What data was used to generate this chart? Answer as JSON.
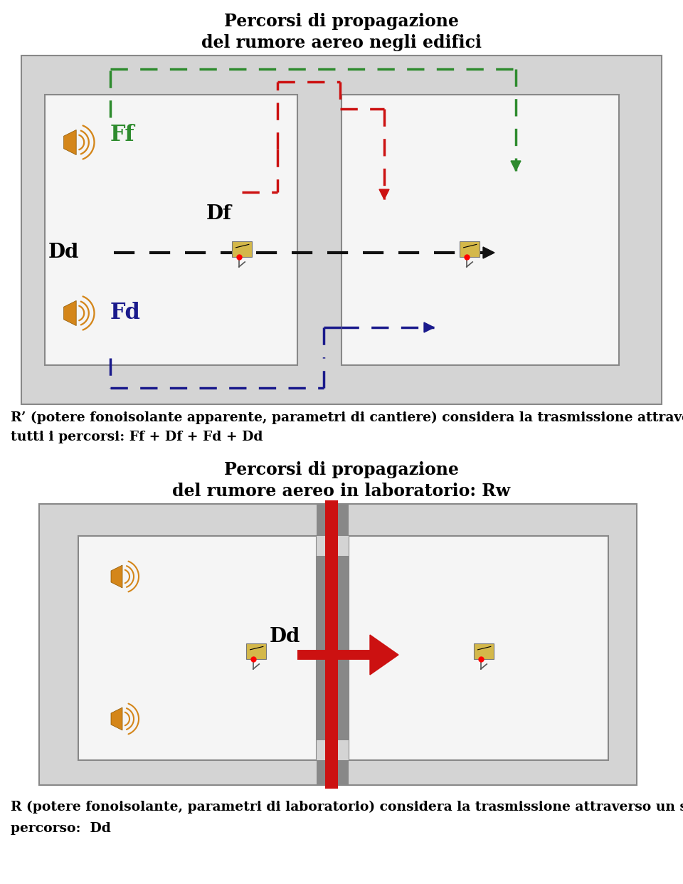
{
  "title1_line1": "Percorsi di propagazione",
  "title1_line2": "del rumore aereo negli edifici",
  "title2_line1": "Percorsi di propagazione",
  "title2_line2": "del rumore aereo in laboratorio: Rw",
  "caption1_line1": "R’ (potere fonoisolante apparente, parametri di cantiere) considera la trasmissione attraverso",
  "caption1_line2": "tutti i percorsi: Ff + Df + Fd + Dd",
  "caption2_line1": "R (potere fonoisolante, parametri di laboratorio) considera la trasmissione attraverso un solo",
  "caption2_line2": "percorso:  Dd",
  "bg_white": "#ffffff",
  "bg_gray": "#d4d4d4",
  "room_white": "#f5f5f5",
  "green": "#2e8b2e",
  "red": "#cc1111",
  "blue": "#1a1a8c",
  "black": "#111111",
  "wall_gray": "#888888",
  "orange": "#d4861a"
}
